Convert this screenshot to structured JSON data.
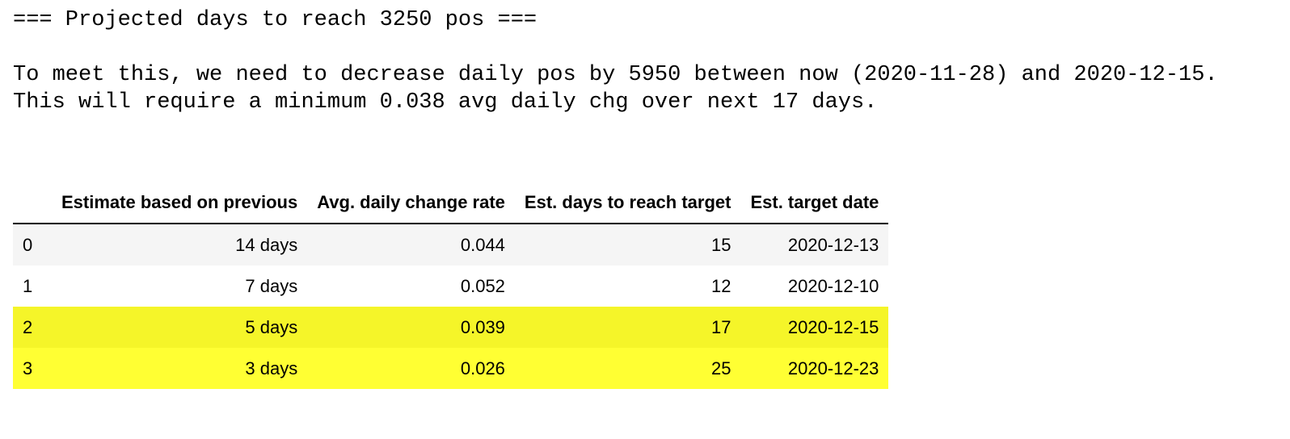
{
  "output": {
    "lines": [
      "=== Projected days to reach 3250 pos ===",
      "",
      "To meet this, we need to decrease daily pos by 5950 between now (2020-11-28) and 2020-12-15.",
      "This will require a minimum 0.038 avg daily chg over next 17 days."
    ]
  },
  "table": {
    "columns": [
      "",
      "Estimate based on previous",
      "Avg. daily change rate",
      "Est. days to reach target",
      "Est. target date"
    ],
    "rows": [
      {
        "index": "0",
        "based_on": "14 days",
        "rate": "0.044",
        "days": "15",
        "date": "2020-12-13"
      },
      {
        "index": "1",
        "based_on": "7 days",
        "rate": "0.052",
        "days": "12",
        "date": "2020-12-10"
      },
      {
        "index": "2",
        "based_on": "5 days",
        "rate": "0.039",
        "days": "17",
        "date": "2020-12-15"
      },
      {
        "index": "3",
        "based_on": "3 days",
        "rate": "0.026",
        "days": "25",
        "date": "2020-12-23"
      }
    ],
    "highlight_colors": [
      "#f5f529",
      "#ffff33"
    ]
  }
}
